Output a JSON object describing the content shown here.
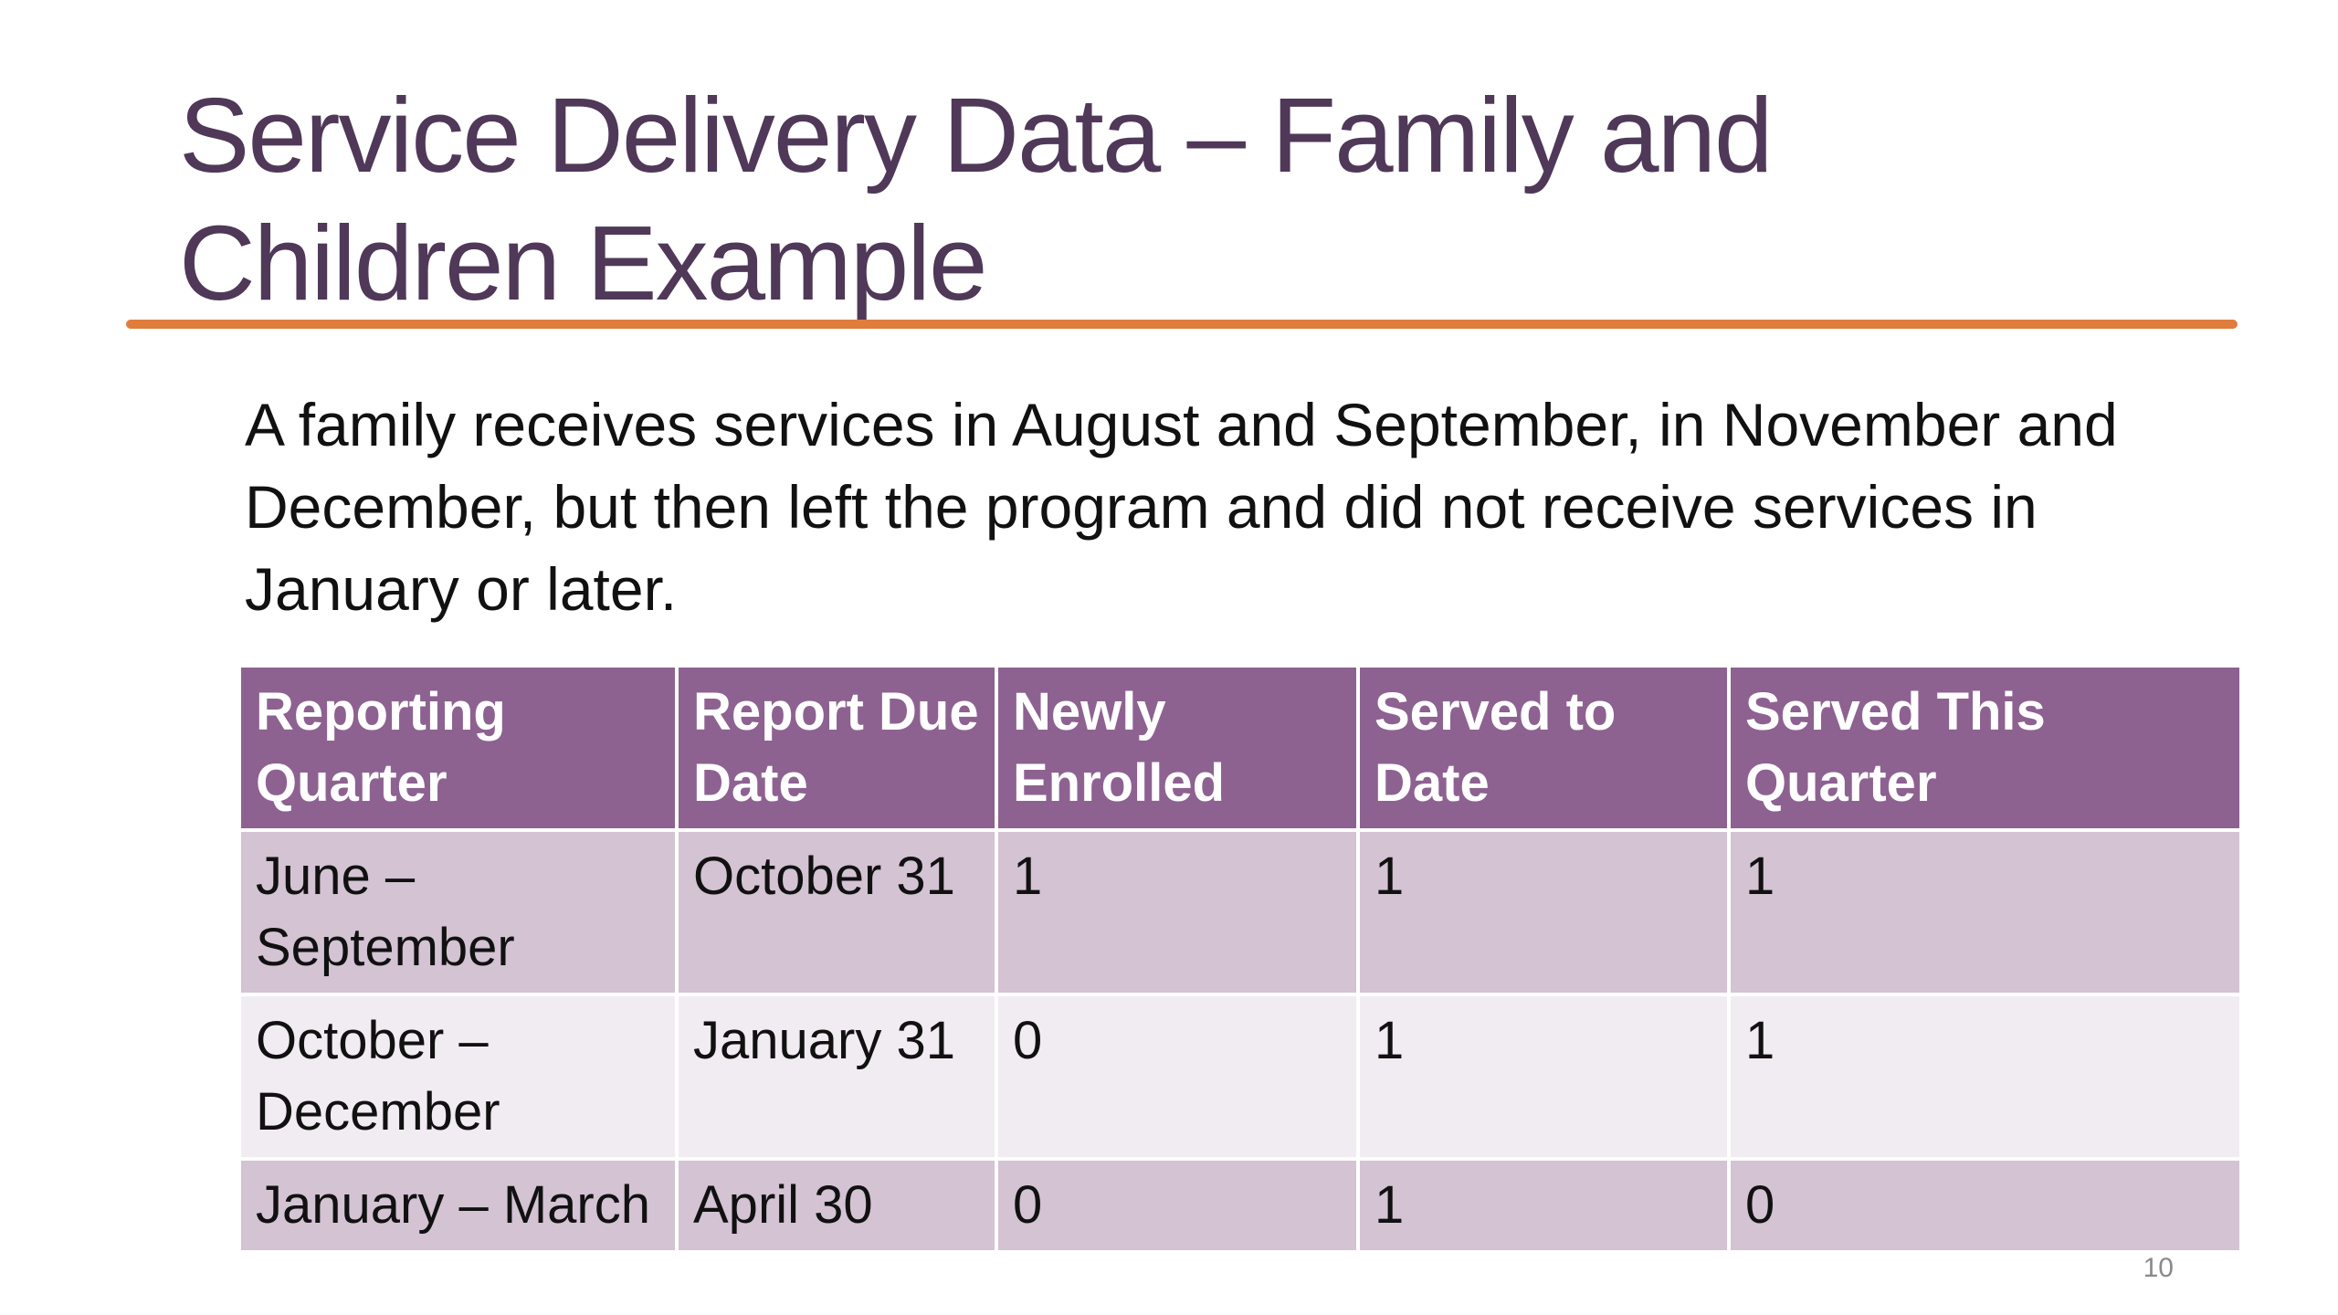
{
  "slide": {
    "title_line1": "Service Delivery Data – Family and",
    "title_line2": "Children Example",
    "intro": "A family receives services in August and September, in November and December, but then left the program and did not receive services in January or later.",
    "page_number": "10"
  },
  "table": {
    "headers": [
      "Reporting Quarter",
      "Report Due Date",
      "Newly Enrolled",
      "Served to Date",
      "Served This Quarter"
    ],
    "rows": [
      [
        "June – September",
        "October 31",
        "1",
        "1",
        "1"
      ],
      [
        "October – December",
        "January 31",
        "0",
        "1",
        "1"
      ],
      [
        "January – March",
        "April 30",
        "0",
        "1",
        "0"
      ]
    ]
  },
  "colors": {
    "title": "#4f3858",
    "accent_rule": "#e07d3c",
    "header_bg": "#8d6291",
    "row_odd_bg": "#d3c3d3",
    "row_even_bg": "#f1ecf1"
  }
}
